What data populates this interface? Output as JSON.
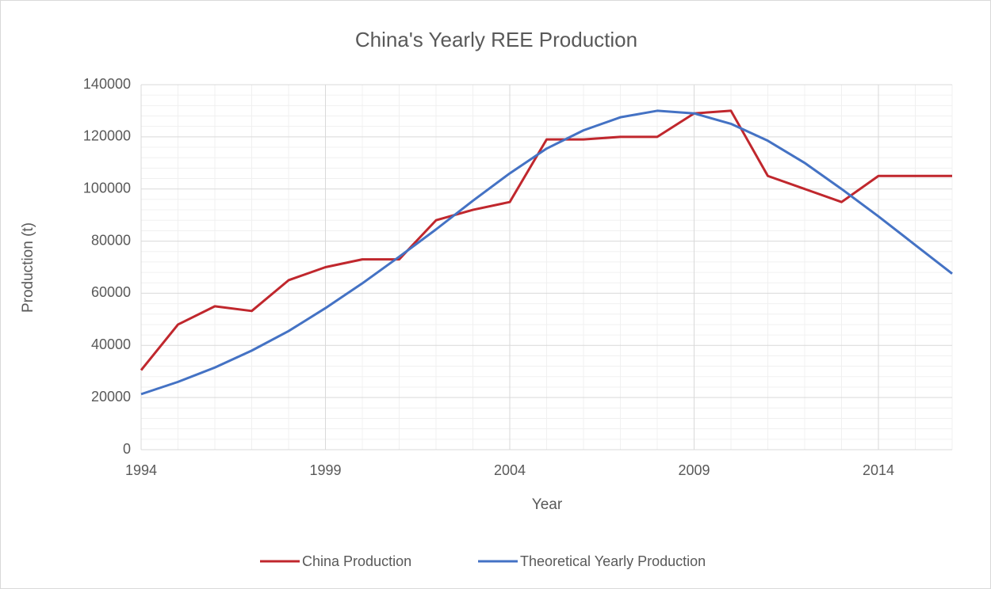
{
  "chart_data": {
    "type": "line",
    "title": "China's Yearly REE Production",
    "x_label": "Year",
    "y_label": "Production (t)",
    "x": [
      1994,
      1995,
      1996,
      1997,
      1998,
      1999,
      2000,
      2001,
      2002,
      2003,
      2004,
      2005,
      2006,
      2007,
      2008,
      2009,
      2010,
      2011,
      2012,
      2013,
      2014,
      2015,
      2016
    ],
    "series": [
      {
        "name": "China Production",
        "color": "#c0272d",
        "values": [
          30500,
          48000,
          55000,
          53200,
          65000,
          70000,
          73000,
          73000,
          88000,
          92000,
          95000,
          119000,
          119000,
          120000,
          120000,
          129000,
          130000,
          105000,
          100000,
          95000,
          105000,
          105000,
          105000
        ]
      },
      {
        "name": "Theoretical Yearly Production",
        "color": "#4472c4",
        "values": [
          21300,
          26000,
          31500,
          38000,
          45500,
          54300,
          63800,
          74000,
          84500,
          95500,
          106000,
          115500,
          122500,
          127500,
          130000,
          129000,
          125000,
          118500,
          110000,
          100000,
          89500,
          78500,
          67500
        ]
      }
    ],
    "xlim": [
      1994,
      2016
    ],
    "xticks": [
      1994,
      1999,
      2004,
      2009,
      2014
    ],
    "ylim": [
      0,
      140000
    ],
    "yticks": [
      0,
      20000,
      40000,
      60000,
      80000,
      100000,
      120000,
      140000
    ],
    "minor_xticks": [
      1995,
      1996,
      1997,
      1998,
      2000,
      2001,
      2002,
      2003,
      2005,
      2006,
      2007,
      2008,
      2010,
      2011,
      2012,
      2013,
      2015,
      2016
    ],
    "minor_yticks": [
      4000,
      8000,
      12000,
      16000,
      24000,
      28000,
      32000,
      36000,
      44000,
      48000,
      52000,
      56000,
      64000,
      68000,
      72000,
      76000,
      84000,
      88000,
      92000,
      96000,
      104000,
      108000,
      112000,
      116000,
      124000,
      128000,
      132000,
      136000
    ],
    "grid": true,
    "legend": "bottom"
  }
}
